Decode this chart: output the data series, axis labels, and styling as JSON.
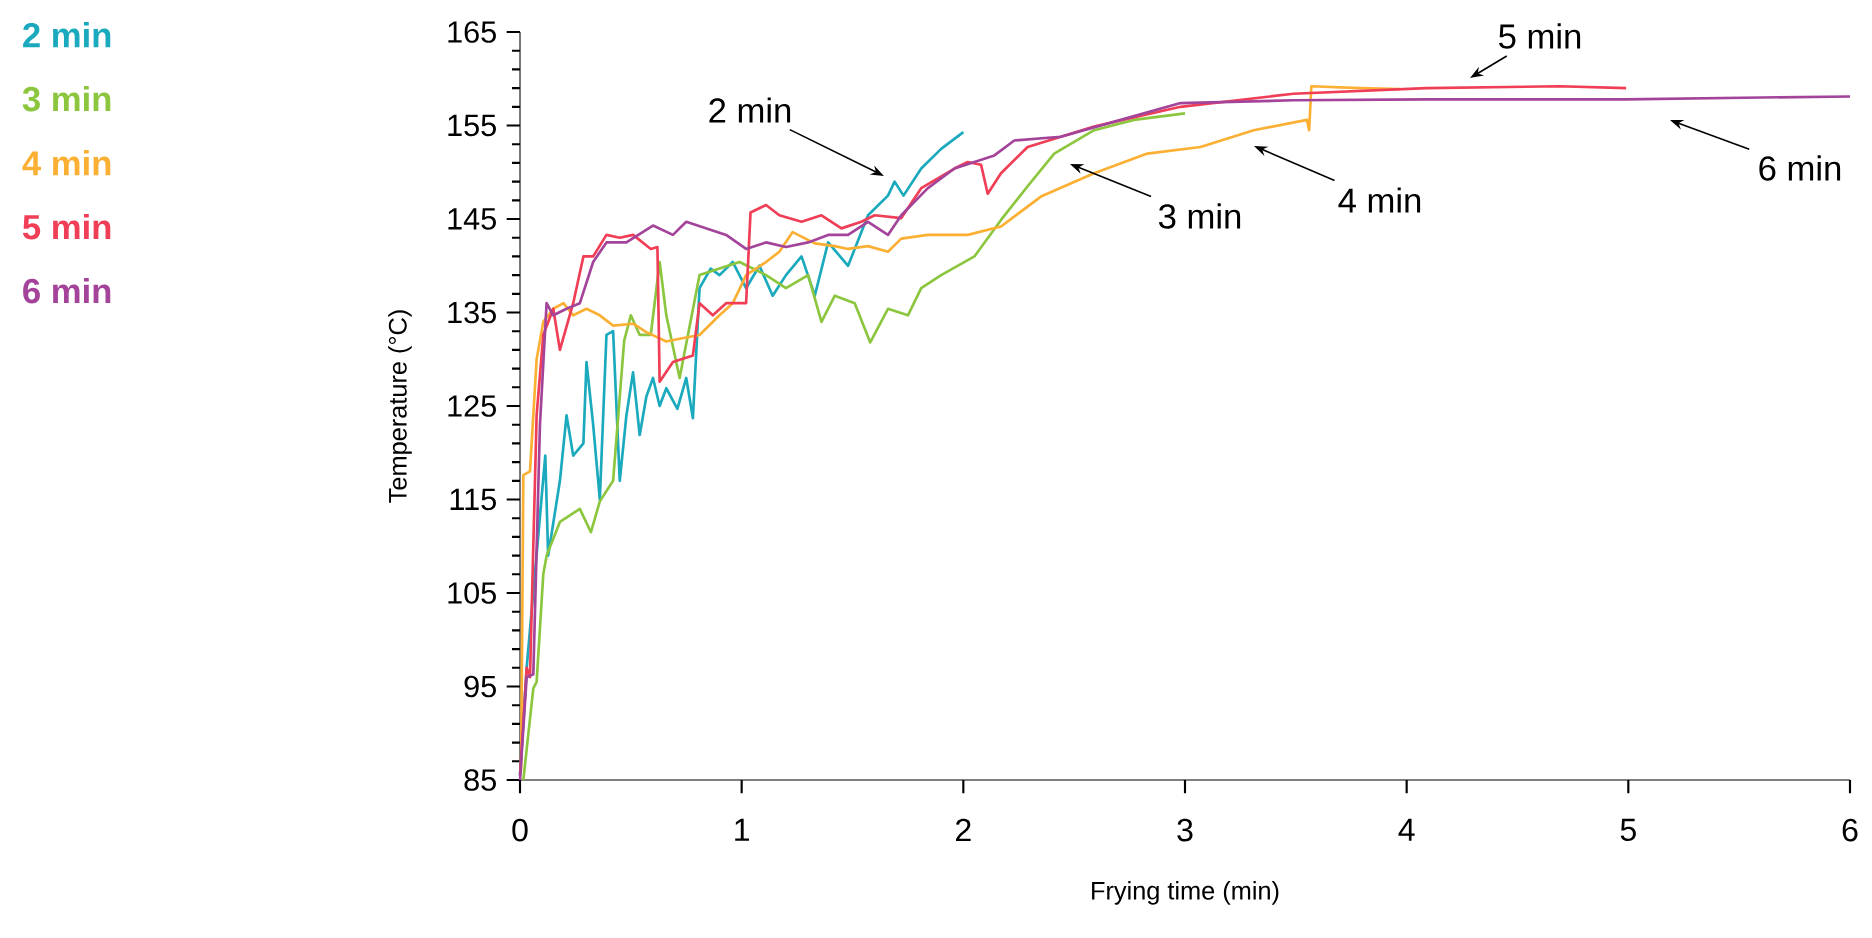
{
  "chart_data": {
    "type": "line",
    "xlabel": "Frying time (min)",
    "ylabel": "Temperature (°C)",
    "xlim": [
      0,
      6
    ],
    "ylim": [
      85,
      165
    ],
    "xticks": [
      0,
      1,
      2,
      3,
      4,
      5,
      6
    ],
    "yticks": [
      85,
      95,
      105,
      115,
      125,
      135,
      145,
      155,
      165
    ],
    "legend": "top left",
    "line_style": "solid",
    "marker": "none",
    "grid": false,
    "series": [
      {
        "name": "2 min",
        "color": "#1aa9bd",
        "x": [
          0,
          0.03,
          0.114,
          0.127,
          0.18,
          0.21,
          0.24,
          0.286,
          0.3,
          0.33,
          0.36,
          0.39,
          0.42,
          0.45,
          0.48,
          0.51,
          0.54,
          0.57,
          0.6,
          0.63,
          0.66,
          0.71,
          0.75,
          0.78,
          0.81,
          0.86,
          0.9,
          0.96,
          1.02,
          1.08,
          1.14,
          1.2,
          1.27,
          1.33,
          1.39,
          1.48,
          1.57,
          1.66,
          1.69,
          1.73,
          1.81,
          1.9,
          2.0
        ],
        "values": [
          85.5,
          97,
          119.7,
          109,
          117,
          124,
          119.7,
          121,
          129.7,
          123,
          115,
          132.6,
          133,
          117,
          124,
          128.6,
          121.9,
          126,
          128,
          125,
          126.9,
          124.7,
          128,
          123.7,
          137.6,
          139.7,
          139,
          140.4,
          137.6,
          140,
          136.8,
          139,
          141,
          136.8,
          142.5,
          140,
          145.4,
          147.5,
          149,
          147.5,
          150.4,
          152.5,
          154.3
        ]
      },
      {
        "name": "3 min",
        "color": "#8cc63f",
        "x": [
          0.015,
          0.06,
          0.075,
          0.105,
          0.12,
          0.18,
          0.27,
          0.32,
          0.36,
          0.42,
          0.47,
          0.5,
          0.54,
          0.59,
          0.63,
          0.66,
          0.72,
          0.81,
          0.9,
          0.99,
          1.11,
          1.2,
          1.3,
          1.36,
          1.42,
          1.51,
          1.58,
          1.66,
          1.75,
          1.81,
          1.9,
          2.05,
          2.17,
          2.29,
          2.41,
          2.59,
          2.77,
          3.0
        ],
        "values": [
          85,
          94.8,
          95.5,
          107,
          109,
          112.6,
          114,
          111.5,
          114.8,
          117,
          132,
          134.7,
          132.6,
          132.6,
          140.4,
          134.7,
          128,
          139,
          139.7,
          140.4,
          139,
          137.6,
          139,
          134,
          136.8,
          136,
          131.8,
          135.4,
          134.7,
          137.6,
          139,
          141,
          144.9,
          148.5,
          152,
          154.5,
          155.6,
          156.3
        ]
      },
      {
        "name": "4 min",
        "color": "#fbb034",
        "x": [
          0.005,
          0.015,
          0.045,
          0.075,
          0.105,
          0.15,
          0.196,
          0.24,
          0.3,
          0.36,
          0.42,
          0.51,
          0.57,
          0.66,
          0.72,
          0.81,
          0.9,
          0.96,
          1.02,
          1.11,
          1.17,
          1.23,
          1.33,
          1.42,
          1.48,
          1.57,
          1.66,
          1.72,
          1.84,
          2.02,
          2.17,
          2.35,
          2.59,
          2.83,
          3.07,
          3.31,
          3.55,
          3.56,
          3.57,
          3.79,
          3.97
        ],
        "values": [
          86,
          117.6,
          118,
          130,
          134,
          135.4,
          136,
          134.7,
          135.4,
          134.7,
          133.6,
          133.8,
          132.9,
          131.9,
          132.2,
          132.6,
          134.7,
          136,
          139,
          140.4,
          141.5,
          143.6,
          142.4,
          142.1,
          141.8,
          142.1,
          141.5,
          142.9,
          143.3,
          143.3,
          144.2,
          147.4,
          149.9,
          152,
          152.7,
          154.5,
          155.6,
          154.5,
          159.2,
          159,
          158.9
        ]
      },
      {
        "name": "5 min",
        "color": "#ef3e56",
        "x": [
          0,
          0.03,
          0.045,
          0.075,
          0.105,
          0.15,
          0.18,
          0.24,
          0.286,
          0.33,
          0.39,
          0.45,
          0.51,
          0.59,
          0.62,
          0.63,
          0.69,
          0.78,
          0.81,
          0.87,
          0.93,
          1.02,
          1.04,
          1.11,
          1.17,
          1.27,
          1.36,
          1.45,
          1.54,
          1.6,
          1.72,
          1.81,
          1.96,
          2.02,
          2.08,
          2.11,
          2.17,
          2.29,
          2.59,
          2.98,
          3.49,
          4.09,
          4.69,
          4.99
        ],
        "values": [
          85.5,
          97,
          96,
          124,
          132.6,
          135.4,
          131,
          136,
          141,
          141,
          143.3,
          143,
          143.3,
          141.8,
          142,
          127.6,
          129.7,
          130.4,
          136,
          134.7,
          136,
          136,
          145.7,
          146.5,
          145.4,
          144.7,
          145.4,
          144,
          144.7,
          145.4,
          145.1,
          148.3,
          150.4,
          151.1,
          150.8,
          147.7,
          149.9,
          152.7,
          154.9,
          157,
          158.4,
          159,
          159.2,
          159
        ]
      },
      {
        "name": "6 min",
        "color": "#a3449a",
        "x": [
          0,
          0.03,
          0.06,
          0.09,
          0.12,
          0.15,
          0.21,
          0.27,
          0.33,
          0.39,
          0.48,
          0.6,
          0.69,
          0.75,
          0.84,
          0.93,
          1.02,
          1.11,
          1.2,
          1.3,
          1.39,
          1.48,
          1.57,
          1.66,
          1.72,
          1.84,
          1.96,
          2.05,
          2.14,
          2.23,
          2.44,
          2.71,
          2.98,
          3.49,
          4.09,
          4.99,
          5.6,
          6.0
        ],
        "values": [
          85,
          96,
          96.3,
          123,
          136,
          134.7,
          135.4,
          136,
          140.4,
          142.5,
          142.5,
          144.3,
          143.3,
          144.7,
          144,
          143.3,
          141.8,
          142.5,
          142,
          142.5,
          143.3,
          143.3,
          144.7,
          143.3,
          145.4,
          148.3,
          150.4,
          151.1,
          151.8,
          153.4,
          153.8,
          155.6,
          157.4,
          157.7,
          157.8,
          157.8,
          158,
          158.1
        ]
      }
    ],
    "annotations": [
      "2 min",
      "3 min",
      "4 min",
      "5 min",
      "6 min"
    ]
  }
}
